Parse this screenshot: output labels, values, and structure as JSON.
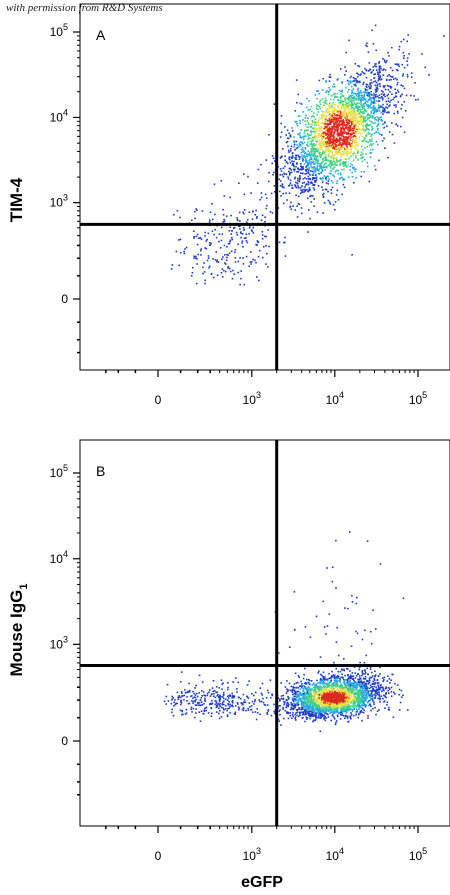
{
  "watermark": "with permission from R&D Systems",
  "colors": {
    "low": "#1f3cc4",
    "mid1": "#25a7e0",
    "mid2": "#3fd08a",
    "mid3": "#e8e24a",
    "high": "#e0281e",
    "gate": "#000000"
  },
  "x_axis_label": "eGFP",
  "tick_base": "10",
  "chart_data": [
    {
      "type": "scatter",
      "panel_label": "A",
      "ylabel": "TIM-4",
      "ylabel_sub": "",
      "xlabel": "",
      "x_scale": "biexponential",
      "y_scale": "biexponential",
      "x_ticks": [
        {
          "value": 0,
          "label": "0"
        },
        {
          "value": 1000,
          "exp": "3"
        },
        {
          "value": 10000,
          "exp": "4"
        },
        {
          "value": 100000,
          "exp": "5"
        }
      ],
      "y_ticks": [
        {
          "value": 0,
          "label": "0"
        },
        {
          "value": 1000,
          "exp": "3"
        },
        {
          "value": 10000,
          "exp": "4"
        },
        {
          "value": 100000,
          "exp": "5"
        }
      ],
      "gates": {
        "x": 2000,
        "y": 550
      },
      "populations": [
        {
          "center": [
            11000,
            7000
          ],
          "spread": [
            0.33,
            0.36
          ],
          "corr": 0.65,
          "count": 2600,
          "dense": true
        },
        {
          "center": [
            500,
            320
          ],
          "spread": [
            0.35,
            0.3
          ],
          "corr": 0.1,
          "count": 260,
          "dense": false
        }
      ]
    },
    {
      "type": "scatter",
      "panel_label": "B",
      "ylabel": "Mouse IgG",
      "ylabel_sub": "1",
      "xlabel": "eGFP",
      "x_scale": "biexponential",
      "y_scale": "biexponential",
      "x_ticks": [
        {
          "value": 0,
          "label": "0"
        },
        {
          "value": 1000,
          "exp": "3"
        },
        {
          "value": 10000,
          "exp": "4"
        },
        {
          "value": 100000,
          "exp": "5"
        }
      ],
      "y_ticks": [
        {
          "value": 0,
          "label": "0"
        },
        {
          "value": 1000,
          "exp": "3"
        },
        {
          "value": 10000,
          "exp": "4"
        },
        {
          "value": 100000,
          "exp": "5"
        }
      ],
      "gates": {
        "x": 2000,
        "y": 560
      },
      "populations": [
        {
          "center": [
            9500,
            220
          ],
          "spread": [
            0.28,
            0.15
          ],
          "corr": 0.3,
          "count": 2400,
          "dense": true
        },
        {
          "center": [
            350,
            200
          ],
          "spread": [
            0.4,
            0.12
          ],
          "corr": 0.0,
          "count": 320,
          "dense": false
        },
        {
          "center": [
            12000,
            1400
          ],
          "spread": [
            0.35,
            0.45
          ],
          "corr": 0.0,
          "count": 60,
          "dense": false
        }
      ]
    }
  ]
}
